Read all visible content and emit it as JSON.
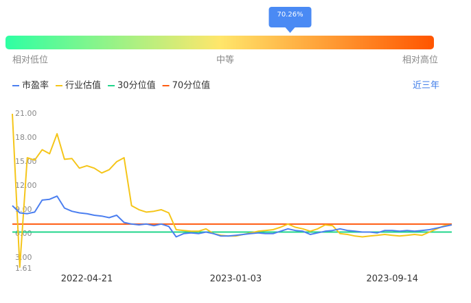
{
  "percentile_bar": {
    "value": 70.26,
    "label": "70.26%",
    "low_label": "相对低位",
    "mid_label": "中等",
    "high_label": "相对高位",
    "colors": [
      "#2effa3",
      "#ffe66b",
      "#ff5500"
    ]
  },
  "chart_data": {
    "type": "line",
    "period_label": "近三年",
    "categories": [
      null,
      null,
      null,
      null,
      null,
      null,
      null,
      null,
      null,
      null,
      "2022-04-21",
      null,
      null,
      null,
      null,
      null,
      null,
      null,
      null,
      null,
      null,
      null,
      null,
      null,
      null,
      null,
      null,
      null,
      null,
      null,
      "2023-01-03",
      null,
      null,
      null,
      null,
      null,
      null,
      null,
      null,
      null,
      null,
      null,
      null,
      null,
      null,
      null,
      null,
      null,
      null,
      null,
      null,
      "2023-09-14",
      null,
      null,
      null,
      null,
      null,
      null,
      null,
      null
    ],
    "series": [
      {
        "name": "市盈率",
        "color": "#4a7ef0",
        "values": [
          9.5,
          8.6,
          8.5,
          8.7,
          10.2,
          10.3,
          10.7,
          9.2,
          8.8,
          8.6,
          8.5,
          8.3,
          8.2,
          8.0,
          8.3,
          7.4,
          7.2,
          7.1,
          7.2,
          7.0,
          7.2,
          6.9,
          5.6,
          6.0,
          6.1,
          6.0,
          6.2,
          6.0,
          5.7,
          5.7,
          5.8,
          5.9,
          6.0,
          6.1,
          6.0,
          6.0,
          6.3,
          6.6,
          6.4,
          6.3,
          5.9,
          6.1,
          6.3,
          6.4,
          6.6,
          6.4,
          6.3,
          6.2,
          6.2,
          6.1,
          6.4,
          6.4,
          6.3,
          6.4,
          6.3,
          6.4,
          6.5,
          6.7,
          6.9,
          7.1
        ]
      },
      {
        "name": "行业估值",
        "color": "#f5c518",
        "values": [
          21,
          1.8,
          15.5,
          15.2,
          16.5,
          16,
          18.5,
          15.3,
          15.4,
          14.2,
          14.5,
          14.2,
          13.6,
          14.0,
          15.0,
          15.5,
          9.5,
          9.0,
          8.7,
          8.8,
          9.0,
          8.6,
          6.5,
          6.4,
          6.3,
          6.3,
          6.6,
          6.0,
          5.8,
          5.7,
          5.7,
          5.9,
          6.1,
          6.3,
          6.4,
          6.5,
          6.8,
          7.2,
          6.8,
          6.6,
          6.3,
          6.6,
          7.1,
          7.0,
          6.0,
          5.9,
          5.7,
          5.6,
          5.7,
          5.8,
          5.9,
          5.8,
          5.7,
          5.8,
          5.9,
          5.8,
          6.2,
          6.6,
          7.0,
          7.1
        ]
      }
    ],
    "reference_lines": [
      {
        "name": "30分位值",
        "color": "#1fd68a",
        "value": 6.2
      },
      {
        "name": "70分位值",
        "color": "#ff5a0f",
        "value": 7.2
      }
    ],
    "ylim": [
      1.61,
      21
    ],
    "yticks": [
      1.61,
      {
        "value": 3,
        "label": "3.00"
      },
      {
        "value": 6,
        "label": "6.00"
      },
      {
        "value": 9,
        "label": "9.00"
      },
      {
        "value": 12,
        "label": "12.00"
      },
      {
        "value": 15,
        "label": "15.00"
      },
      {
        "value": 18,
        "label": "18.00"
      },
      {
        "value": 21,
        "label": "21.00"
      }
    ]
  }
}
